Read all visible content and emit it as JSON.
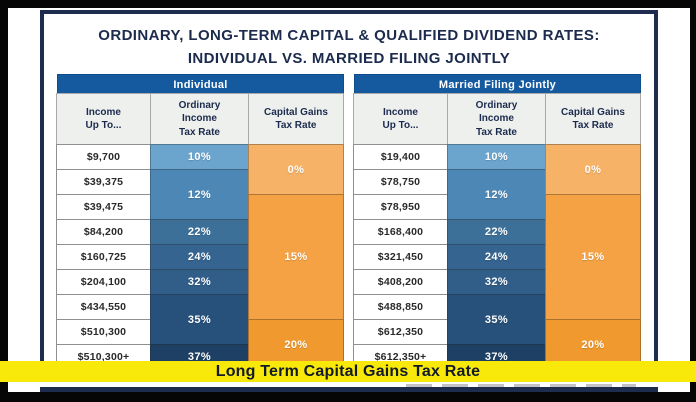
{
  "title": {
    "line1": "ORDINARY, LONG-TERM CAPITAL & QUALIFIED DIVIDEND RATES:",
    "line2": "INDIVIDUAL VS. MARRIED FILING JOINTLY"
  },
  "banner": {
    "label": "Long Term Capital Gains Tax Rate"
  },
  "colors": {
    "frame_black": "#060606",
    "border_navy": "#1e2c4e",
    "table_header_blue": "#15599f",
    "banner_yellow": "#f8e90a",
    "title_navy": "#1c2b4d",
    "column_header_grey": "#eef0ee"
  },
  "tables": [
    {
      "title": "Individual",
      "columns": [
        [
          "Income",
          "Up To..."
        ],
        [
          "Ordinary",
          "Income",
          "Tax Rate"
        ],
        [
          "Capital Gains",
          "Tax Rate"
        ]
      ],
      "income_rows": [
        "$9,700",
        "$39,375",
        "$39,475",
        "$84,200",
        "$160,725",
        "$204,100",
        "$434,550",
        "$510,300",
        "$510,300+"
      ],
      "ordinary_rates": [
        {
          "label": "10%",
          "span": 1,
          "color": "#6ba4cc"
        },
        {
          "label": "12%",
          "span": 2,
          "color": "#4d87b5"
        },
        {
          "label": "22%",
          "span": 1,
          "color": "#3d7099"
        },
        {
          "label": "24%",
          "span": 1,
          "color": "#34648f"
        },
        {
          "label": "32%",
          "span": 1,
          "color": "#305e88"
        },
        {
          "label": "35%",
          "span": 2,
          "color": "#27517b"
        },
        {
          "label": "37%",
          "span": 1,
          "color": "#1d4064"
        }
      ],
      "capital_rates": [
        {
          "label": "0%",
          "span": 2,
          "color": "#f6b266"
        },
        {
          "label": "15%",
          "span": 5,
          "color": "#f4a244"
        },
        {
          "label": "20%",
          "span": 2,
          "color": "#ef992e"
        }
      ]
    },
    {
      "title": "Married Filing Jointly",
      "columns": [
        [
          "Income",
          "Up To..."
        ],
        [
          "Ordinary",
          "Income",
          "Tax Rate"
        ],
        [
          "Capital Gains",
          "Tax Rate"
        ]
      ],
      "income_rows": [
        "$19,400",
        "$78,750",
        "$78,950",
        "$168,400",
        "$321,450",
        "$408,200",
        "$488,850",
        "$612,350",
        "$612,350+"
      ],
      "ordinary_rates": [
        {
          "label": "10%",
          "span": 1,
          "color": "#6ba4cc"
        },
        {
          "label": "12%",
          "span": 2,
          "color": "#4d87b5"
        },
        {
          "label": "22%",
          "span": 1,
          "color": "#3d7099"
        },
        {
          "label": "24%",
          "span": 1,
          "color": "#34648f"
        },
        {
          "label": "32%",
          "span": 1,
          "color": "#305e88"
        },
        {
          "label": "35%",
          "span": 2,
          "color": "#27517b"
        },
        {
          "label": "37%",
          "span": 1,
          "color": "#1d4064"
        }
      ],
      "capital_rates": [
        {
          "label": "0%",
          "span": 2,
          "color": "#f6b266"
        },
        {
          "label": "15%",
          "span": 5,
          "color": "#f4a244"
        },
        {
          "label": "20%",
          "span": 2,
          "color": "#ef992e"
        }
      ]
    }
  ]
}
